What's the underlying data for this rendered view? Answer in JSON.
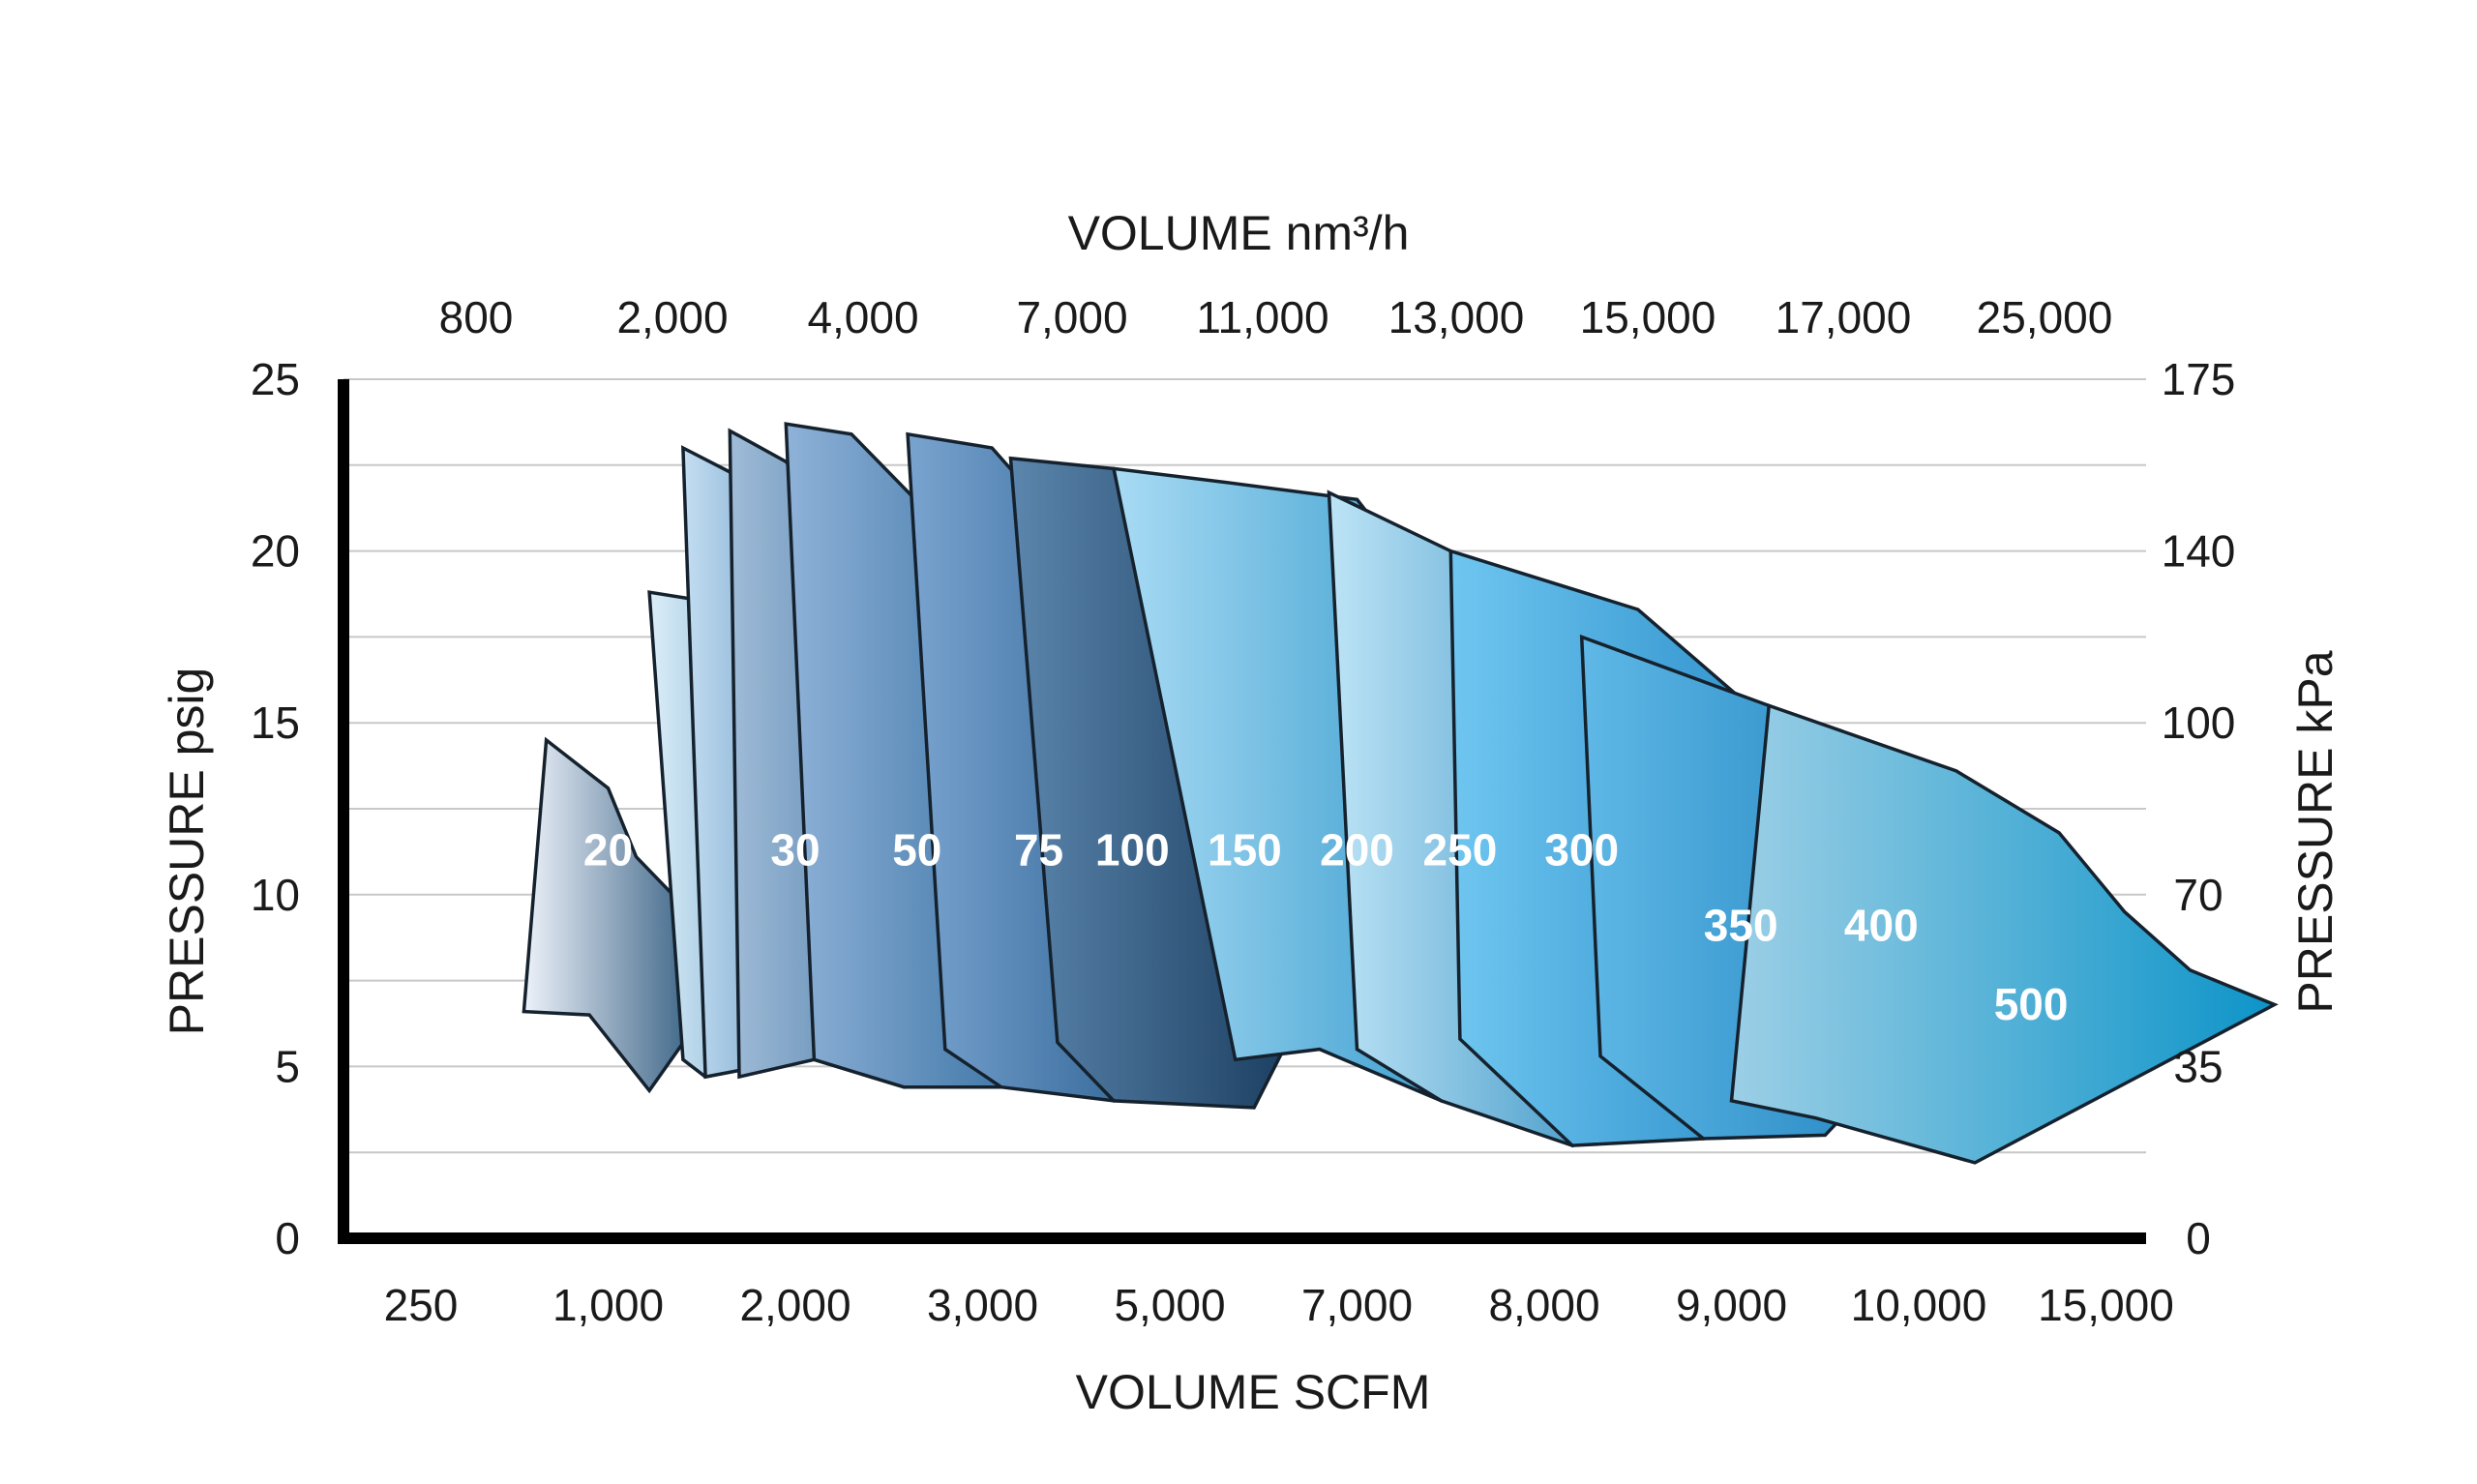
{
  "chart_data": {
    "type": "area",
    "title": "",
    "x_top_axis": {
      "label": "VOLUME nm³/h",
      "ticks": [
        "800",
        "2,000",
        "4,000",
        "7,000",
        "11,000",
        "13,000",
        "15,000",
        "17,000",
        "25,000"
      ]
    },
    "x_bottom_axis": {
      "label": "VOLUME SCFM",
      "ticks": [
        "250",
        "1,000",
        "2,000",
        "3,000",
        "5,000",
        "7,000",
        "8,000",
        "9,000",
        "10,000",
        "15,000"
      ]
    },
    "y_left_axis": {
      "label": "PRESSURE psig",
      "ticks": [
        0,
        5,
        10,
        15,
        20,
        25
      ],
      "ylim": [
        0,
        25
      ]
    },
    "y_right_axis": {
      "label": "PRESSURE kPa",
      "ticks": [
        0,
        35,
        70,
        100,
        140,
        175
      ]
    },
    "grid": true,
    "x_scale": "categorical (tick positions 0-9 = 250 ... 15,000 SCFM)",
    "series": [
      {
        "name": "20",
        "label_at": {
          "x": 1.0,
          "y": 11.2
        },
        "color_light": "#eef2fa",
        "color_dark": "#0a3d66",
        "polygon": [
          [
            0.55,
            6.6
          ],
          [
            0.67,
            14.5
          ],
          [
            1.0,
            13.1
          ],
          [
            1.15,
            11.1
          ],
          [
            1.7,
            8.0
          ],
          [
            1.22,
            4.3
          ],
          [
            0.9,
            6.5
          ],
          [
            0.55,
            6.6
          ]
        ]
      },
      {
        "name": "30",
        "label_at": {
          "x": 2.0,
          "y": 11.2
        },
        "color_light": "#dceef8",
        "color_dark": "#1569a8",
        "polygon": [
          [
            1.4,
            5.2
          ],
          [
            1.22,
            18.8
          ],
          [
            1.45,
            18.6
          ],
          [
            1.85,
            15.8
          ],
          [
            2.25,
            13.1
          ],
          [
            2.6,
            10.0
          ],
          [
            2.0,
            5.2
          ],
          [
            1.52,
            4.7
          ],
          [
            1.4,
            5.2
          ]
        ]
      },
      {
        "name": "50",
        "label_at": {
          "x": 2.65,
          "y": 11.2
        },
        "color_light": "#c4def2",
        "color_dark": "#1b5f9a",
        "polygon": [
          [
            1.52,
            4.7
          ],
          [
            1.4,
            23.0
          ],
          [
            1.65,
            22.3
          ],
          [
            2.2,
            18.0
          ],
          [
            2.62,
            12.0
          ],
          [
            2.65,
            10.0
          ],
          [
            2.0,
            5.2
          ],
          [
            1.52,
            4.7
          ]
        ]
      },
      {
        "name": "75",
        "label_at": {
          "x": 3.3,
          "y": 11.2
        },
        "color_light": "#a0bcd8",
        "color_dark": "#1b568c",
        "polygon": [
          [
            1.7,
            4.7
          ],
          [
            1.65,
            23.5
          ],
          [
            1.95,
            22.6
          ],
          [
            2.55,
            18.5
          ],
          [
            3.0,
            13.0
          ],
          [
            3.18,
            11.0
          ],
          [
            2.58,
            4.4
          ],
          [
            2.1,
            5.2
          ],
          [
            1.7,
            4.7
          ]
        ]
      },
      {
        "name": "100",
        "label_at": {
          "x": 3.8,
          "y": 11.2
        },
        "color_light": "#8fb2d8",
        "color_dark": "#1e5d92",
        "polygon": [
          [
            2.1,
            5.2
          ],
          [
            1.95,
            23.7
          ],
          [
            2.3,
            23.4
          ],
          [
            3.0,
            19.5
          ],
          [
            3.5,
            13.5
          ],
          [
            3.7,
            11.0
          ],
          [
            3.1,
            4.4
          ],
          [
            2.58,
            4.4
          ],
          [
            2.1,
            5.2
          ]
        ]
      },
      {
        "name": "150",
        "label_at": {
          "x": 4.4,
          "y": 11.2
        },
        "color_light": "#7aa4d0",
        "color_dark": "#174f82",
        "polygon": [
          [
            2.8,
            5.5
          ],
          [
            2.6,
            23.4
          ],
          [
            3.05,
            23.0
          ],
          [
            3.7,
            19.0
          ],
          [
            4.1,
            13.5
          ],
          [
            4.35,
            11.0
          ],
          [
            3.7,
            4.0
          ],
          [
            3.1,
            4.4
          ],
          [
            2.8,
            5.5
          ]
        ]
      },
      {
        "name": "200",
        "label_at": {
          "x": 5.0,
          "y": 11.2
        },
        "color_light": "#5c86ad",
        "color_dark": "#07294a",
        "polygon": [
          [
            3.4,
            5.7
          ],
          [
            3.15,
            22.7
          ],
          [
            3.7,
            22.4
          ],
          [
            4.35,
            18.5
          ],
          [
            4.8,
            13.5
          ],
          [
            5.1,
            10.8
          ],
          [
            4.45,
            3.8
          ],
          [
            3.7,
            4.0
          ],
          [
            3.4,
            5.7
          ]
        ]
      },
      {
        "name": "250",
        "label_at": {
          "x": 5.55,
          "y": 11.2
        },
        "color_light": "#a9dbf4",
        "color_dark": "#1b8cc4",
        "polygon": [
          [
            4.35,
            5.2
          ],
          [
            3.7,
            22.4
          ],
          [
            4.3,
            22.0
          ],
          [
            5.0,
            21.5
          ],
          [
            5.5,
            18.0
          ],
          [
            5.8,
            13.5
          ],
          [
            6.05,
            11.0
          ],
          [
            5.45,
            4.0
          ],
          [
            4.8,
            5.5
          ],
          [
            4.35,
            5.2
          ]
        ]
      },
      {
        "name": "300",
        "label_at": {
          "x": 6.2,
          "y": 11.2
        },
        "color_light": "#bde4f6",
        "color_dark": "#1a7fb8",
        "polygon": [
          [
            5.0,
            5.5
          ],
          [
            4.85,
            21.7
          ],
          [
            5.5,
            20.0
          ],
          [
            6.2,
            17.5
          ],
          [
            6.6,
            13.5
          ],
          [
            6.85,
            11.0
          ],
          [
            6.15,
            2.7
          ],
          [
            5.45,
            4.0
          ],
          [
            5.0,
            5.5
          ]
        ]
      },
      {
        "name": "350",
        "label_at": {
          "x": 7.05,
          "y": 9.0
        },
        "color_light": "#6fc6f0",
        "color_dark": "#1a80c0",
        "polygon": [
          [
            5.55,
            5.8
          ],
          [
            5.5,
            20.0
          ],
          [
            6.5,
            18.3
          ],
          [
            7.2,
            15.0
          ],
          [
            7.55,
            12.0
          ],
          [
            7.75,
            9.0
          ],
          [
            6.85,
            2.9
          ],
          [
            6.15,
            2.7
          ],
          [
            5.55,
            5.8
          ]
        ]
      },
      {
        "name": "400",
        "label_at": {
          "x": 7.8,
          "y": 9.0
        },
        "color_light": "#5fb8e6",
        "color_dark": "#0f74b4",
        "polygon": [
          [
            6.3,
            5.3
          ],
          [
            6.2,
            17.5
          ],
          [
            7.2,
            15.5
          ],
          [
            7.85,
            13.0
          ],
          [
            8.2,
            11.0
          ],
          [
            8.55,
            9.0
          ],
          [
            7.5,
            3.0
          ],
          [
            6.85,
            2.9
          ],
          [
            6.3,
            5.3
          ]
        ]
      },
      {
        "name": "500",
        "label_at": {
          "x": 8.6,
          "y": 6.7
        },
        "color_light": "#9ccfe6",
        "color_dark": "#0d94c8",
        "polygon": [
          [
            7.0,
            4.0
          ],
          [
            7.2,
            15.5
          ],
          [
            8.2,
            13.6
          ],
          [
            8.75,
            11.8
          ],
          [
            9.1,
            9.5
          ],
          [
            9.45,
            7.8
          ],
          [
            9.9,
            6.8
          ],
          [
            8.3,
            2.2
          ],
          [
            7.45,
            3.5
          ],
          [
            7.0,
            4.0
          ]
        ]
      }
    ]
  }
}
